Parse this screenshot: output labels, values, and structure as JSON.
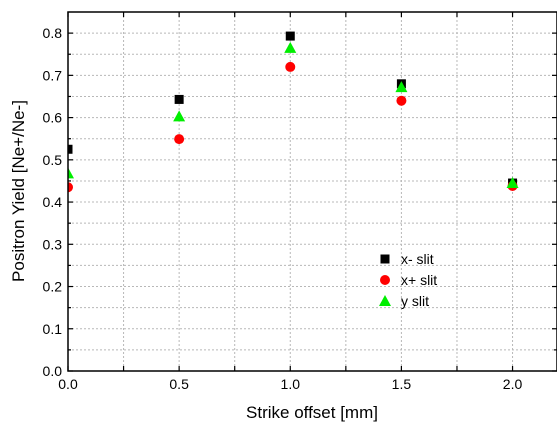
{
  "chart_data": {
    "type": "scatter",
    "xlabel": "Strike offset [mm]",
    "ylabel": "Positron Yield [Ne+/Ne-]",
    "xlim": [
      0.0,
      2.2
    ],
    "ylim": [
      0.0,
      0.85
    ],
    "x_major_ticks": [
      0.0,
      0.5,
      1.0,
      1.5,
      2.0
    ],
    "x_minor_ticks": [
      0.25,
      0.75,
      1.25,
      1.75
    ],
    "y_major_ticks": [
      0.0,
      0.1,
      0.2,
      0.3,
      0.4,
      0.5,
      0.6,
      0.7,
      0.8
    ],
    "x_tick_labels": [
      "0.0",
      "0.5",
      "1.0",
      "1.5",
      "2.0"
    ],
    "y_tick_labels": [
      "0.0",
      "0.1",
      "0.2",
      "0.3",
      "0.4",
      "0.5",
      "0.6",
      "0.7",
      "0.8"
    ],
    "grid": true,
    "legend_position": "lower-right",
    "series": [
      {
        "name": "x- slit",
        "marker": "square",
        "color": "#000000",
        "x": [
          0.0,
          0.5,
          1.0,
          1.5,
          2.0
        ],
        "y": [
          0.525,
          0.643,
          0.793,
          0.68,
          0.445
        ]
      },
      {
        "name": "x+ slit",
        "marker": "circle",
        "color": "#ff0000",
        "x": [
          0.0,
          0.5,
          1.0,
          1.5,
          2.0
        ],
        "y": [
          0.435,
          0.549,
          0.72,
          0.64,
          0.438
        ]
      },
      {
        "name": "y slit",
        "marker": "triangle",
        "color": "#00ee00",
        "x": [
          0.0,
          0.5,
          1.0,
          1.5,
          2.0
        ],
        "y": [
          0.468,
          0.603,
          0.765,
          0.672,
          0.445
        ]
      }
    ]
  }
}
